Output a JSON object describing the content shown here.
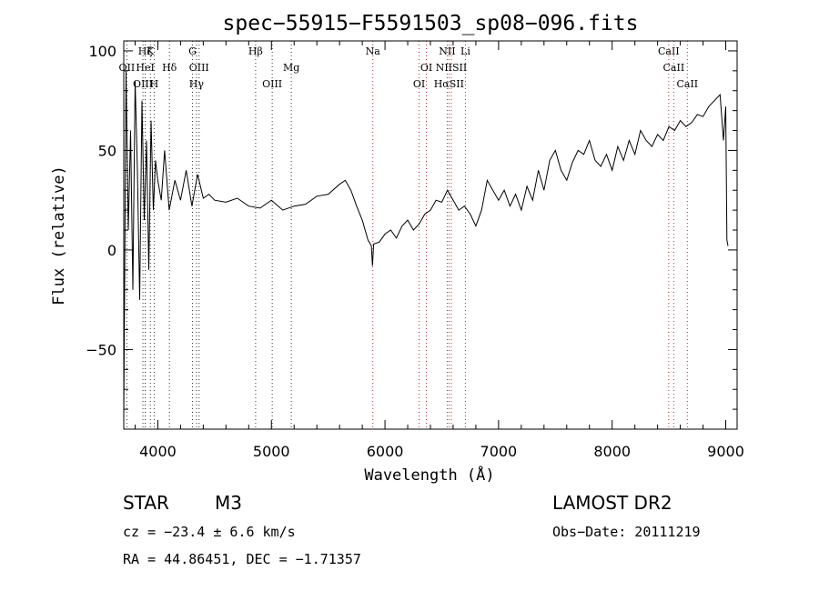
{
  "chart_data": {
    "type": "line",
    "title": "spec−55915−F5591503_sp08−096.fits",
    "xlabel": "Wavelength (Å)",
    "ylabel": "Flux (relative)",
    "xlim": [
      3700,
      9100
    ],
    "ylim": [
      -90,
      105
    ],
    "xticks": [
      4000,
      5000,
      6000,
      7000,
      8000,
      9000
    ],
    "xtick_labels": [
      "4000",
      "5000",
      "6000",
      "7000",
      "8000",
      "9000"
    ],
    "yticks": [
      100,
      50,
      0,
      -50
    ],
    "ytick_labels": [
      "100",
      "50",
      "0",
      "−50"
    ],
    "grid": false,
    "series": [
      {
        "color": "#000000",
        "x": [
          3700,
          3720,
          3740,
          3760,
          3780,
          3800,
          3820,
          3840,
          3860,
          3880,
          3900,
          3920,
          3940,
          3960,
          3980,
          4000,
          4030,
          4060,
          4100,
          4150,
          4200,
          4250,
          4300,
          4350,
          4400,
          4450,
          4500,
          4600,
          4700,
          4800,
          4900,
          5000,
          5100,
          5200,
          5300,
          5400,
          5500,
          5600,
          5650,
          5700,
          5750,
          5800,
          5850,
          5880,
          5890,
          5900,
          5950,
          6000,
          6050,
          6100,
          6150,
          6200,
          6250,
          6300,
          6350,
          6400,
          6450,
          6500,
          6550,
          6600,
          6650,
          6700,
          6750,
          6800,
          6850,
          6900,
          6950,
          7000,
          7050,
          7100,
          7150,
          7200,
          7250,
          7300,
          7350,
          7400,
          7450,
          7500,
          7550,
          7600,
          7650,
          7700,
          7750,
          7800,
          7850,
          7900,
          7950,
          8000,
          8050,
          8100,
          8150,
          8200,
          8250,
          8300,
          8350,
          8400,
          8450,
          8500,
          8550,
          8600,
          8650,
          8700,
          8750,
          8800,
          8850,
          8900,
          8950,
          8980,
          9000,
          9010,
          9020
        ],
        "y": [
          -85,
          90,
          10,
          60,
          -20,
          85,
          40,
          -25,
          75,
          15,
          55,
          -10,
          65,
          20,
          45,
          35,
          25,
          50,
          20,
          35,
          25,
          40,
          22,
          38,
          26,
          28,
          25,
          24,
          26,
          22,
          21,
          25,
          20,
          22,
          23,
          27,
          28,
          33,
          35,
          30,
          22,
          15,
          5,
          2,
          -8,
          3,
          4,
          8,
          10,
          6,
          12,
          15,
          10,
          13,
          18,
          20,
          25,
          24,
          30,
          25,
          20,
          22,
          18,
          12,
          20,
          35,
          30,
          25,
          30,
          22,
          28,
          20,
          32,
          25,
          40,
          30,
          45,
          50,
          40,
          35,
          44,
          50,
          48,
          55,
          45,
          42,
          48,
          40,
          52,
          45,
          55,
          48,
          60,
          55,
          52,
          58,
          55,
          62,
          60,
          65,
          62,
          64,
          68,
          67,
          72,
          75,
          78,
          55,
          72,
          5,
          2
        ]
      }
    ],
    "line_markers": [
      {
        "name": "Hζ",
        "x": 3889,
        "row": 0,
        "color": "#333333"
      },
      {
        "name": "K",
        "x": 3934,
        "row": 0,
        "color": "#333333"
      },
      {
        "name": "G",
        "x": 4305,
        "row": 0,
        "color": "#333333"
      },
      {
        "name": "Hβ",
        "x": 4861,
        "row": 0,
        "color": "#333333"
      },
      {
        "name": "Na",
        "x": 5893,
        "row": 0,
        "color": "#aa3333"
      },
      {
        "name": "NII",
        "x": 6548,
        "row": 0,
        "color": "#aa3333"
      },
      {
        "name": "Li",
        "x": 6708,
        "row": 0,
        "color": "#aa3333"
      },
      {
        "name": "CaII",
        "x": 8498,
        "row": 0,
        "color": "#aa3333"
      },
      {
        "name": "OII",
        "x": 3727,
        "row": 1,
        "color": "#333333"
      },
      {
        "name": "HeI",
        "x": 3889,
        "row": 1,
        "color": "#333333"
      },
      {
        "name": "Hδ",
        "x": 4102,
        "row": 1,
        "color": "#333333"
      },
      {
        "name": "OIII",
        "x": 4363,
        "row": 1,
        "color": "#333333"
      },
      {
        "name": "Mg",
        "x": 5175,
        "row": 1,
        "color": "#333333"
      },
      {
        "name": "OI",
        "x": 6364,
        "row": 1,
        "color": "#aa3333"
      },
      {
        "name": "NIISII",
        "x": 6584,
        "row": 1,
        "color": "#aa3333"
      },
      {
        "name": "CaII",
        "x": 8542,
        "row": 1,
        "color": "#aa3333"
      },
      {
        "name": "OIII",
        "x": 3869,
        "row": 2,
        "color": "#333333"
      },
      {
        "name": "H",
        "x": 3968,
        "row": 2,
        "color": "#333333"
      },
      {
        "name": "Hγ",
        "x": 4340,
        "row": 2,
        "color": "#333333"
      },
      {
        "name": "OIII",
        "x": 5007,
        "row": 2,
        "color": "#333333"
      },
      {
        "name": "OI",
        "x": 6300,
        "row": 2,
        "color": "#aa3333"
      },
      {
        "name": "HαSII",
        "x": 6563,
        "row": 2,
        "color": "#aa3333"
      },
      {
        "name": "CaII",
        "x": 8662,
        "row": 2,
        "color": "#aa3333"
      }
    ]
  },
  "info": {
    "object_class": "STAR",
    "subclass": "M3",
    "survey": "LAMOST DR2",
    "redshift": "cz = −23.4 ± 6.6 km/s",
    "obs_date": "Obs−Date: 20111219",
    "coords": "RA =  44.86451, DEC =  −1.71357"
  }
}
